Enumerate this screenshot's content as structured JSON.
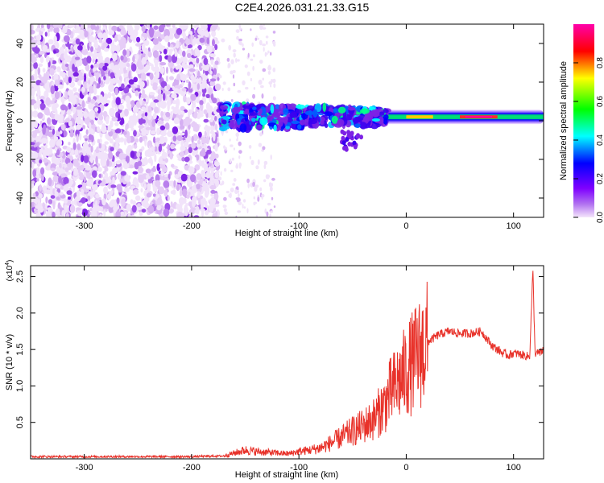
{
  "title": "C2E4.2026.031.21.33.G15",
  "chart_data": [
    {
      "type": "heatmap",
      "title": "",
      "xlabel": "Height of straight line (km)",
      "ylabel": "Frequency (Hz)",
      "xlim": [
        -350,
        128
      ],
      "ylim": [
        -50,
        50
      ],
      "xticks": [
        -300,
        -200,
        -100,
        0,
        100
      ],
      "yticks": [
        -40,
        -20,
        0,
        20,
        40
      ],
      "colorbar": {
        "label": "Normalized spectral amplitude",
        "range": [
          0,
          1
        ],
        "ticks": [
          0.0,
          0.2,
          0.4,
          0.6,
          0.8
        ],
        "colormap": [
          "#f0e0f8",
          "#7f00ff",
          "#0000ff",
          "#00ffff",
          "#00ff00",
          "#ffff00",
          "#ff0000",
          "#ff00aa"
        ]
      },
      "description_values": {
        "noise_region_x": [
          -350,
          -175
        ],
        "signal_center_frequency_hz": 2,
        "signal_start_x": -175
      }
    },
    {
      "type": "line",
      "title": "",
      "xlabel": "Height of straight line (km)",
      "ylabel": "SNR (10 * v/v)",
      "scale_label_base": "(x10",
      "scale_label_exp": "4",
      "scale_label_close": ")",
      "xlim": [
        -350,
        128
      ],
      "ylim": [
        0,
        2.65
      ],
      "xticks": [
        -300,
        -200,
        -100,
        0,
        100
      ],
      "yticks": [
        0.5,
        1.0,
        1.5,
        2.0,
        2.5
      ],
      "ytick_labels": [
        "0.5",
        "1.0",
        "1.5",
        "2.0",
        "2.5"
      ],
      "color": "#e8322a",
      "series": [
        {
          "x": [
            -350,
            -300,
            -250,
            -200,
            -170,
            -160,
            -150,
            -140,
            -130,
            -120,
            -110,
            -100,
            -90,
            -80,
            -70,
            -60,
            -50,
            -40,
            -30,
            -20,
            -15,
            -10,
            -5,
            0,
            10,
            20,
            30,
            40,
            50,
            60,
            70,
            75,
            80,
            85,
            90,
            95,
            100,
            110,
            115,
            118,
            120,
            125,
            128
          ],
          "y": [
            0.03,
            0.03,
            0.03,
            0.03,
            0.04,
            0.08,
            0.12,
            0.1,
            0.09,
            0.08,
            0.07,
            0.1,
            0.12,
            0.15,
            0.22,
            0.3,
            0.38,
            0.45,
            0.55,
            0.75,
            0.9,
            1.0,
            1.1,
            1.2,
            1.4,
            1.6,
            1.7,
            1.75,
            1.72,
            1.72,
            1.75,
            1.65,
            1.55,
            1.5,
            1.45,
            1.42,
            1.45,
            1.42,
            1.4,
            2.6,
            1.45,
            1.45,
            1.5
          ]
        }
      ]
    }
  ]
}
